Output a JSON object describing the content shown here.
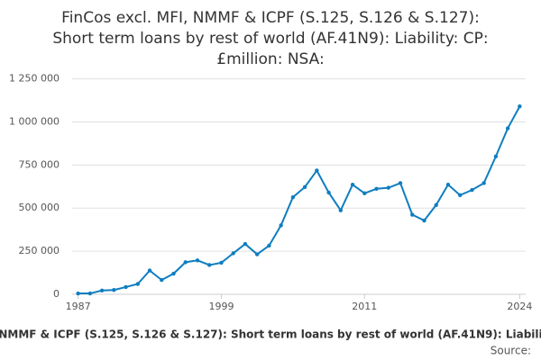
{
  "chart_data": {
    "type": "line",
    "title": [
      "FinCos excl. MFI, NMMF & ICPF (S.125, S.126 & S.127):",
      "Short term loans by rest of world (AF.41N9): Liability: CP:",
      "£million: NSA:"
    ],
    "footer": "NMMF & ICPF (S.125, S.126 & S.127): Short term loans by rest of world (AF.41N9): Liabili",
    "source": "Source:",
    "x": [
      1987,
      1988,
      1989,
      1990,
      1991,
      1992,
      1993,
      1994,
      1995,
      1996,
      1997,
      1998,
      1999,
      2000,
      2001,
      2002,
      2003,
      2004,
      2005,
      2006,
      2007,
      2008,
      2009,
      2010,
      2011,
      2012,
      2013,
      2014,
      2015,
      2016,
      2017,
      2018,
      2019,
      2020,
      2021,
      2022,
      2023,
      2024
    ],
    "values": [
      5000,
      5000,
      22000,
      25000,
      42000,
      60000,
      138000,
      83000,
      120000,
      186000,
      197000,
      170000,
      183000,
      238000,
      292000,
      232000,
      282000,
      400000,
      563000,
      622000,
      718000,
      590000,
      487000,
      636000,
      586000,
      612000,
      618000,
      645000,
      462000,
      428000,
      518000,
      636000,
      575000,
      605000,
      645000,
      800000,
      963000,
      1090000
    ],
    "color": "#0f7ec0",
    "xlim": [
      1986.5,
      2024.5
    ],
    "xticks": [
      1987,
      1999,
      2011,
      2024
    ],
    "ylim": [
      0,
      1300000
    ],
    "yticks": [
      0,
      {
        "value": 250000,
        "label": "250 000"
      },
      {
        "value": 500000,
        "label": "500 000"
      },
      {
        "value": 750000,
        "label": "750 000"
      },
      {
        "value": 1000000,
        "label": "1 000 000"
      },
      {
        "value": 1250000,
        "label": "1 250 000"
      }
    ],
    "grid": true
  }
}
